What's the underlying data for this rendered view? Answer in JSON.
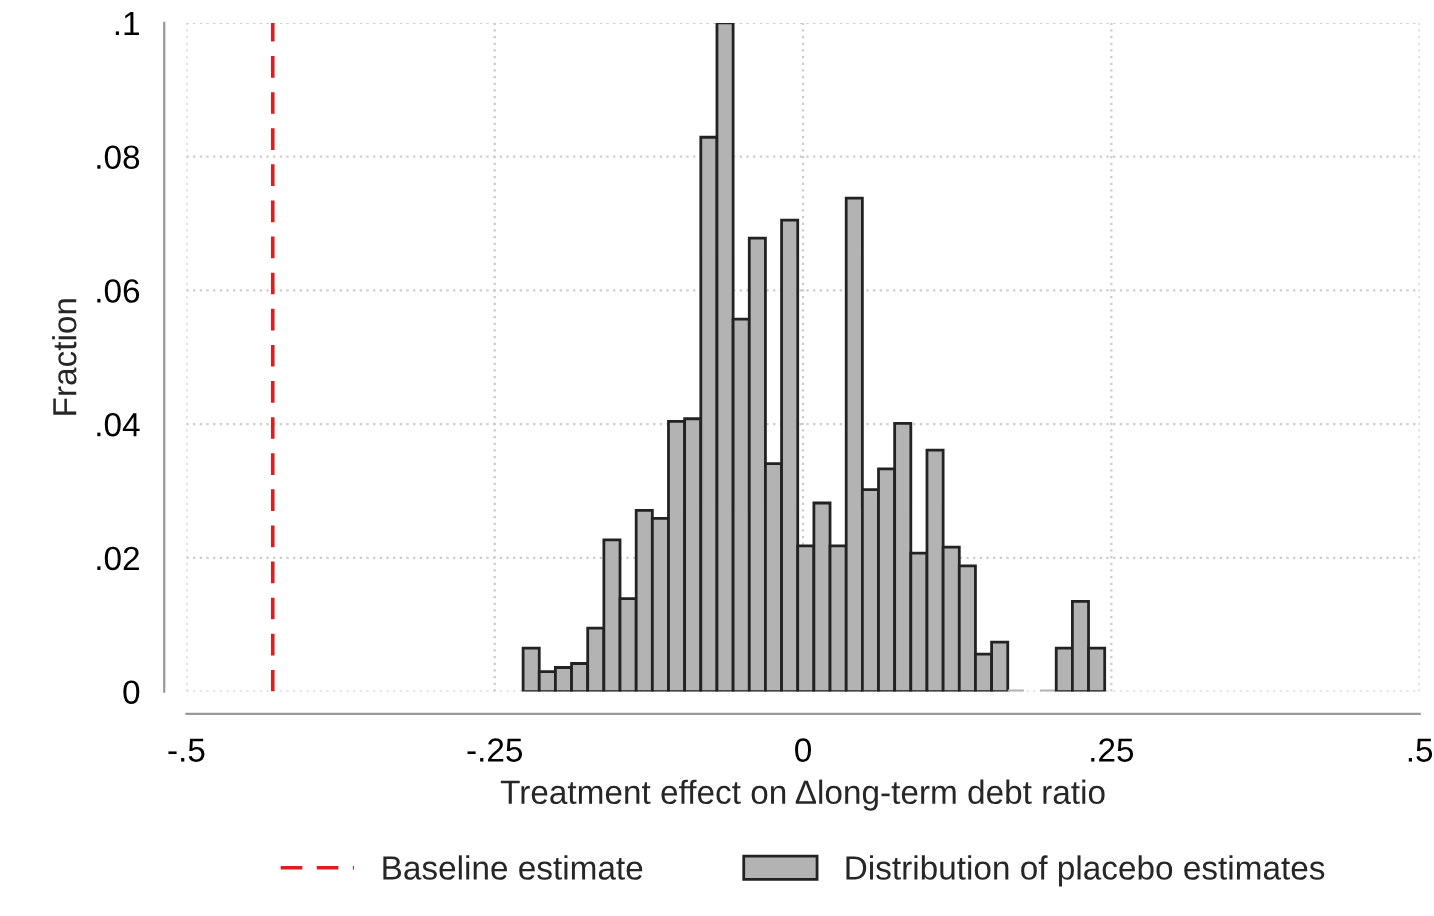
{
  "chart_data": {
    "type": "histogram",
    "xlabel": "Treatment effect on Δlong-term debt ratio",
    "ylabel": "Fraction",
    "bins": [
      -0.227,
      -0.2139,
      -0.2008,
      -0.1877,
      -0.1746,
      -0.1615,
      -0.1484,
      -0.1353,
      -0.1222,
      -0.1091,
      -0.096,
      -0.0829,
      -0.0698,
      -0.0567,
      -0.0436,
      -0.0305,
      -0.0174,
      -0.0043,
      0.0088,
      0.0219,
      0.035,
      0.0481,
      0.0612,
      0.0743,
      0.0874,
      0.1005,
      0.1136,
      0.1267,
      0.1398,
      0.1529,
      0.166,
      0.1791,
      0.1922,
      0.2053,
      0.2184,
      0.2315,
      0.2446
    ],
    "series": [
      {
        "name": "Distribution of placebo estimates",
        "color": "#b3b3b3",
        "values": [
          0.0065,
          0.003,
          0.0036,
          0.0042,
          0.0095,
          0.0227,
          0.0139,
          0.0271,
          0.0259,
          0.0404,
          0.0408,
          0.0829,
          0.1,
          0.0557,
          0.0678,
          0.0341,
          0.0705,
          0.0218,
          0.0282,
          0.0218,
          0.0738,
          0.0302,
          0.0333,
          0.0401,
          0.0207,
          0.0361,
          0.0216,
          0.0188,
          0.0056,
          0.0074,
          0,
          null,
          0,
          0.0065,
          0.0135,
          0.0065
        ]
      }
    ],
    "ref_lines": [
      {
        "axis": "x",
        "value": -0.43,
        "label": "Baseline estimate",
        "color": "#e41a1c",
        "line_style": "dashed"
      }
    ],
    "xlim": [
      -0.5,
      0.5
    ],
    "xticks": [
      {
        "value": -0.5,
        "label": "-.5"
      },
      {
        "value": -0.25,
        "label": "-.25"
      },
      0,
      {
        "value": 0.25,
        "label": ".25"
      },
      {
        "value": 0.5,
        "label": ".5"
      }
    ],
    "ylim": [
      0,
      0.1
    ],
    "yticks": [
      0,
      {
        "value": 0.02,
        "label": ".02"
      },
      {
        "value": 0.04,
        "label": ".04"
      },
      {
        "value": 0.06,
        "label": ".06"
      },
      {
        "value": 0.08,
        "label": ".08"
      },
      {
        "value": 0.1,
        "label": ".1"
      }
    ],
    "grid": true,
    "legend": "bottom"
  }
}
